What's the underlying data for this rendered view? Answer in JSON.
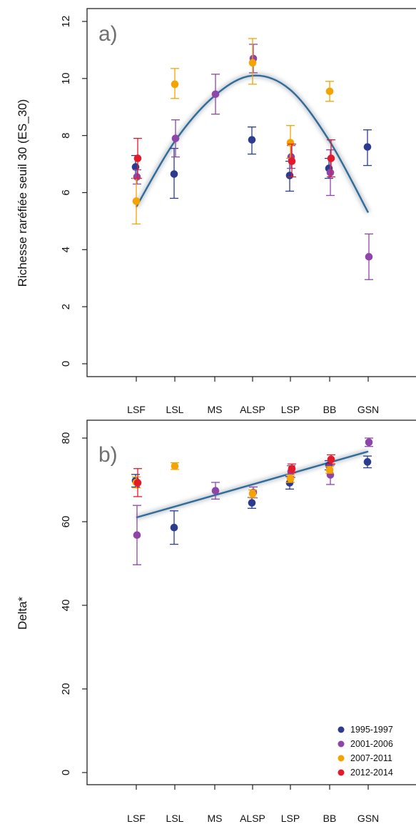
{
  "figure": {
    "colors": {
      "1995-1997": "#2b3b8f",
      "2001-2006": "#8e44a8",
      "2007-2011": "#f5a300",
      "2012-2014": "#e31a2a",
      "trend": "#2f6c9a"
    },
    "legend": {
      "position": "bottom-right",
      "entries": [
        "1995-1997",
        "2001-2006",
        "2007-2011",
        "2012-2014"
      ]
    }
  },
  "chart_data": [
    {
      "type": "scatter",
      "panel_label": "a)",
      "ylabel": "Richesse raréfiée seuil 30 (ES_30)",
      "categories": [
        "LSF",
        "LSL",
        "MS",
        "ALSP",
        "LSP",
        "BB",
        "GSN"
      ],
      "yticks": [
        0,
        2,
        4,
        6,
        8,
        10,
        12
      ],
      "ylim": [
        -0.3,
        12.4
      ],
      "grid": false,
      "series": [
        {
          "name": "1995-1997",
          "points": [
            {
              "x": "LSF",
              "y": 6.9,
              "lo": 6.5,
              "hi": 7.3
            },
            {
              "x": "LSL",
              "y": 6.65,
              "lo": 5.8,
              "hi": 7.55
            },
            {
              "x": "ALSP",
              "y": 7.85,
              "lo": 7.35,
              "hi": 8.3
            },
            {
              "x": "LSP",
              "y": 6.6,
              "lo": 6.05,
              "hi": 7.1
            },
            {
              "x": "BB",
              "y": 6.85,
              "lo": 6.5,
              "hi": 7.2
            },
            {
              "x": "GSN",
              "y": 7.6,
              "lo": 6.95,
              "hi": 8.2
            }
          ]
        },
        {
          "name": "2001-2006",
          "points": [
            {
              "x": "LSF",
              "y": 6.55,
              "lo": 6.3,
              "hi": 6.8
            },
            {
              "x": "LSL",
              "y": 7.9,
              "lo": 7.25,
              "hi": 8.55
            },
            {
              "x": "MS",
              "y": 9.45,
              "lo": 8.75,
              "hi": 10.15
            },
            {
              "x": "ALSP",
              "y": 10.7,
              "lo": 10.2,
              "hi": 11.2
            },
            {
              "x": "LSP",
              "y": 7.25,
              "lo": 6.85,
              "hi": 7.65
            },
            {
              "x": "BB",
              "y": 6.7,
              "lo": 5.9,
              "hi": 7.5
            },
            {
              "x": "GSN",
              "y": 3.75,
              "lo": 2.95,
              "hi": 4.55
            }
          ]
        },
        {
          "name": "2007-2011",
          "points": [
            {
              "x": "LSF",
              "y": 5.7,
              "lo": 4.9,
              "hi": 6.5
            },
            {
              "x": "LSL",
              "y": 9.8,
              "lo": 9.3,
              "hi": 10.35
            },
            {
              "x": "ALSP",
              "y": 10.55,
              "lo": 9.8,
              "hi": 11.4
            },
            {
              "x": "LSP",
              "y": 7.75,
              "lo": 7.2,
              "hi": 8.35
            },
            {
              "x": "BB",
              "y": 9.55,
              "lo": 9.2,
              "hi": 9.9
            }
          ]
        },
        {
          "name": "2012-2014",
          "points": [
            {
              "x": "LSF",
              "y": 7.2,
              "lo": 6.5,
              "hi": 7.9
            },
            {
              "x": "LSP",
              "y": 7.1,
              "lo": 6.55,
              "hi": 7.7
            },
            {
              "x": "BB",
              "y": 7.2,
              "lo": 6.55,
              "hi": 7.85
            }
          ]
        }
      ],
      "trend": {
        "type": "quadratic",
        "points": [
          [
            "LSF",
            5.5
          ],
          [
            "LSL",
            7.8
          ],
          [
            "MS",
            9.4
          ],
          [
            "ALSP",
            10.1
          ],
          [
            "LSP",
            9.6
          ],
          [
            "BB",
            7.8
          ],
          [
            "GSN",
            5.3
          ]
        ]
      }
    },
    {
      "type": "scatter",
      "panel_label": "b)",
      "ylabel": "Delta*",
      "categories": [
        "LSF",
        "LSL",
        "MS",
        "ALSP",
        "LSP",
        "BB",
        "GSN"
      ],
      "yticks": [
        0,
        20,
        40,
        60,
        80
      ],
      "ylim": [
        -3,
        81.5
      ],
      "grid": false,
      "series": [
        {
          "name": "1995-1997",
          "points": [
            {
              "x": "LSF",
              "y": 69.8,
              "lo": 68.3,
              "hi": 71.3
            },
            {
              "x": "LSL",
              "y": 58.6,
              "lo": 54.6,
              "hi": 62.6
            },
            {
              "x": "ALSP",
              "y": 64.5,
              "lo": 63.2,
              "hi": 65.8
            },
            {
              "x": "LSP",
              "y": 69.3,
              "lo": 67.8,
              "hi": 70.8
            },
            {
              "x": "BB",
              "y": 73.5,
              "lo": 72.4,
              "hi": 74.6
            },
            {
              "x": "GSN",
              "y": 74.3,
              "lo": 72.9,
              "hi": 75.7
            }
          ]
        },
        {
          "name": "2001-2006",
          "points": [
            {
              "x": "LSF",
              "y": 56.8,
              "lo": 49.7,
              "hi": 63.9
            },
            {
              "x": "MS",
              "y": 67.4,
              "lo": 65.4,
              "hi": 69.4
            },
            {
              "x": "ALSP",
              "y": 67.0,
              "lo": 65.7,
              "hi": 68.3
            },
            {
              "x": "LSP",
              "y": 72.0,
              "lo": 70.6,
              "hi": 73.4
            },
            {
              "x": "BB",
              "y": 71.2,
              "lo": 68.9,
              "hi": 73.5
            },
            {
              "x": "GSN",
              "y": 79.0,
              "lo": 78.0,
              "hi": 80.0
            }
          ]
        },
        {
          "name": "2007-2011",
          "points": [
            {
              "x": "LSF",
              "y": 69.4,
              "lo": 68.1,
              "hi": 70.7
            },
            {
              "x": "LSL",
              "y": 73.3,
              "lo": 72.5,
              "hi": 74.1
            },
            {
              "x": "ALSP",
              "y": 66.7,
              "lo": 65.8,
              "hi": 67.6
            },
            {
              "x": "LSP",
              "y": 70.3,
              "lo": 69.4,
              "hi": 71.2
            },
            {
              "x": "BB",
              "y": 72.4,
              "lo": 71.6,
              "hi": 73.2
            }
          ]
        },
        {
          "name": "2012-2014",
          "points": [
            {
              "x": "LSF",
              "y": 69.3,
              "lo": 66.0,
              "hi": 72.7
            },
            {
              "x": "LSP",
              "y": 72.7,
              "lo": 71.7,
              "hi": 73.8
            },
            {
              "x": "BB",
              "y": 74.9,
              "lo": 73.8,
              "hi": 76.0
            }
          ]
        }
      ],
      "trend": {
        "type": "linear",
        "points": [
          [
            "LSF",
            61.0
          ],
          [
            "GSN",
            76.8
          ]
        ]
      }
    }
  ]
}
